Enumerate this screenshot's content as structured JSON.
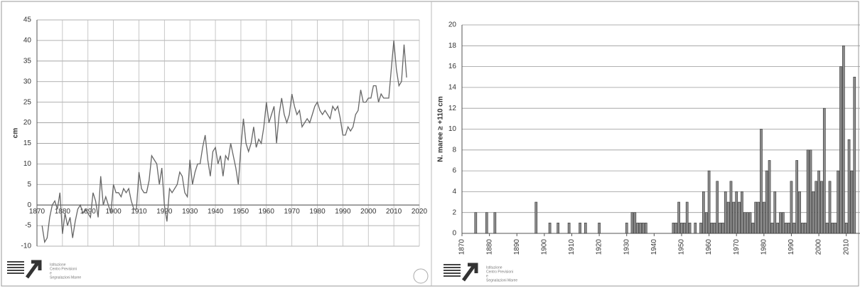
{
  "chart_data": [
    {
      "type": "line",
      "ylabel": "cm",
      "color": "#666666",
      "grid": true,
      "x": [
        1872,
        1873,
        1874,
        1875,
        1876,
        1877,
        1878,
        1879,
        1880,
        1881,
        1882,
        1883,
        1884,
        1885,
        1886,
        1887,
        1888,
        1889,
        1890,
        1891,
        1892,
        1893,
        1894,
        1895,
        1896,
        1897,
        1898,
        1899,
        1900,
        1901,
        1902,
        1903,
        1904,
        1905,
        1906,
        1907,
        1908,
        1909,
        1910,
        1911,
        1912,
        1913,
        1914,
        1915,
        1916,
        1917,
        1918,
        1919,
        1920,
        1921,
        1922,
        1923,
        1924,
        1925,
        1926,
        1927,
        1928,
        1929,
        1930,
        1931,
        1932,
        1933,
        1934,
        1935,
        1936,
        1937,
        1938,
        1939,
        1940,
        1941,
        1942,
        1943,
        1944,
        1945,
        1946,
        1947,
        1948,
        1949,
        1950,
        1951,
        1952,
        1953,
        1954,
        1955,
        1956,
        1957,
        1958,
        1959,
        1960,
        1961,
        1962,
        1963,
        1964,
        1965,
        1966,
        1967,
        1968,
        1969,
        1970,
        1971,
        1972,
        1973,
        1974,
        1975,
        1976,
        1977,
        1978,
        1979,
        1980,
        1981,
        1982,
        1983,
        1984,
        1985,
        1986,
        1987,
        1988,
        1989,
        1990,
        1991,
        1992,
        1993,
        1994,
        1995,
        1996,
        1997,
        1998,
        1999,
        2000,
        2001,
        2002,
        2003,
        2004,
        2005,
        2006,
        2007,
        2008,
        2009,
        2010,
        2011,
        2012,
        2013,
        2014,
        2015
      ],
      "values": [
        -5,
        -9,
        -8,
        -3,
        0,
        1,
        -1,
        3,
        -7,
        -2,
        -5,
        -3,
        -8,
        -4,
        -1,
        0,
        -2,
        -1,
        -2,
        -3,
        3,
        1,
        -3,
        7,
        0,
        2,
        0,
        -2,
        5,
        3,
        3,
        2,
        4,
        3,
        4,
        1,
        -1,
        -1,
        8,
        4,
        3,
        3,
        6,
        12,
        11,
        10,
        5,
        9,
        0,
        -4,
        4,
        3,
        4,
        5,
        8,
        7,
        3,
        2,
        11,
        5,
        8,
        10,
        10,
        14,
        17,
        11,
        7,
        13,
        14,
        10,
        12,
        7,
        12,
        11,
        15,
        12,
        9,
        5,
        14,
        21,
        15,
        13,
        15,
        19,
        14,
        16,
        15,
        19,
        25,
        20,
        22,
        24,
        15,
        22,
        26,
        22,
        20,
        22,
        27,
        24,
        22,
        23,
        19,
        20,
        21,
        20,
        22,
        24,
        25,
        23,
        22,
        23,
        22,
        21,
        24,
        23,
        24,
        21,
        17,
        17,
        19,
        18,
        19,
        22,
        23,
        28,
        25,
        25,
        26,
        26,
        29,
        29,
        25,
        27,
        26,
        26,
        26,
        33,
        40,
        33,
        29,
        30,
        39,
        31
      ],
      "xlim": [
        1870,
        2020
      ],
      "ylim": [
        -10,
        45
      ],
      "xticks": [
        1870,
        1880,
        1890,
        1900,
        1910,
        1920,
        1930,
        1940,
        1950,
        1960,
        1970,
        1980,
        1990,
        2000,
        2010,
        2020
      ],
      "yticks": [
        -10,
        -5,
        0,
        5,
        10,
        15,
        20,
        25,
        30,
        35,
        40,
        45
      ]
    },
    {
      "type": "bar",
      "ylabel": "N. maree ≥ +110 cm",
      "color": "#8c8c8c",
      "grid": true,
      "x": [
        1875,
        1879,
        1882,
        1897,
        1902,
        1905,
        1909,
        1913,
        1915,
        1920,
        1930,
        1932,
        1933,
        1934,
        1935,
        1936,
        1937,
        1947,
        1948,
        1949,
        1950,
        1951,
        1952,
        1953,
        1955,
        1957,
        1958,
        1959,
        1960,
        1961,
        1962,
        1963,
        1964,
        1965,
        1966,
        1967,
        1968,
        1969,
        1970,
        1971,
        1972,
        1973,
        1974,
        1975,
        1976,
        1977,
        1978,
        1979,
        1980,
        1981,
        1982,
        1983,
        1984,
        1985,
        1986,
        1987,
        1988,
        1989,
        1990,
        1991,
        1992,
        1993,
        1994,
        1995,
        1996,
        1997,
        1998,
        1999,
        2000,
        2001,
        2002,
        2003,
        2004,
        2005,
        2006,
        2007,
        2008,
        2009,
        2010,
        2011,
        2012,
        2013
      ],
      "values": [
        2,
        2,
        2,
        3,
        1,
        1,
        1,
        1,
        1,
        1,
        1,
        2,
        2,
        1,
        1,
        1,
        1,
        1,
        1,
        3,
        1,
        1,
        3,
        1,
        1,
        1,
        4,
        2,
        6,
        1,
        1,
        5,
        1,
        1,
        4,
        3,
        5,
        3,
        4,
        3,
        4,
        2,
        2,
        2,
        1,
        3,
        3,
        10,
        3,
        6,
        7,
        1,
        4,
        1,
        2,
        2,
        1,
        1,
        5,
        1,
        7,
        4,
        1,
        1,
        8,
        8,
        4,
        5,
        6,
        5,
        12,
        1,
        5,
        1,
        1,
        6,
        16,
        18,
        1,
        9,
        6,
        15
      ],
      "xlim": [
        1870,
        2015
      ],
      "ylim": [
        0,
        20
      ],
      "xticks": [
        1870,
        1880,
        1890,
        1900,
        1910,
        1920,
        1930,
        1940,
        1950,
        1960,
        1970,
        1980,
        1990,
        2000,
        2010
      ],
      "yticks": [
        0,
        2,
        4,
        6,
        8,
        10,
        12,
        14,
        16,
        18,
        20
      ]
    }
  ],
  "logo_text": [
    "Istituzione",
    "Centro Previsioni",
    "e",
    "Segnalazioni Maree"
  ]
}
